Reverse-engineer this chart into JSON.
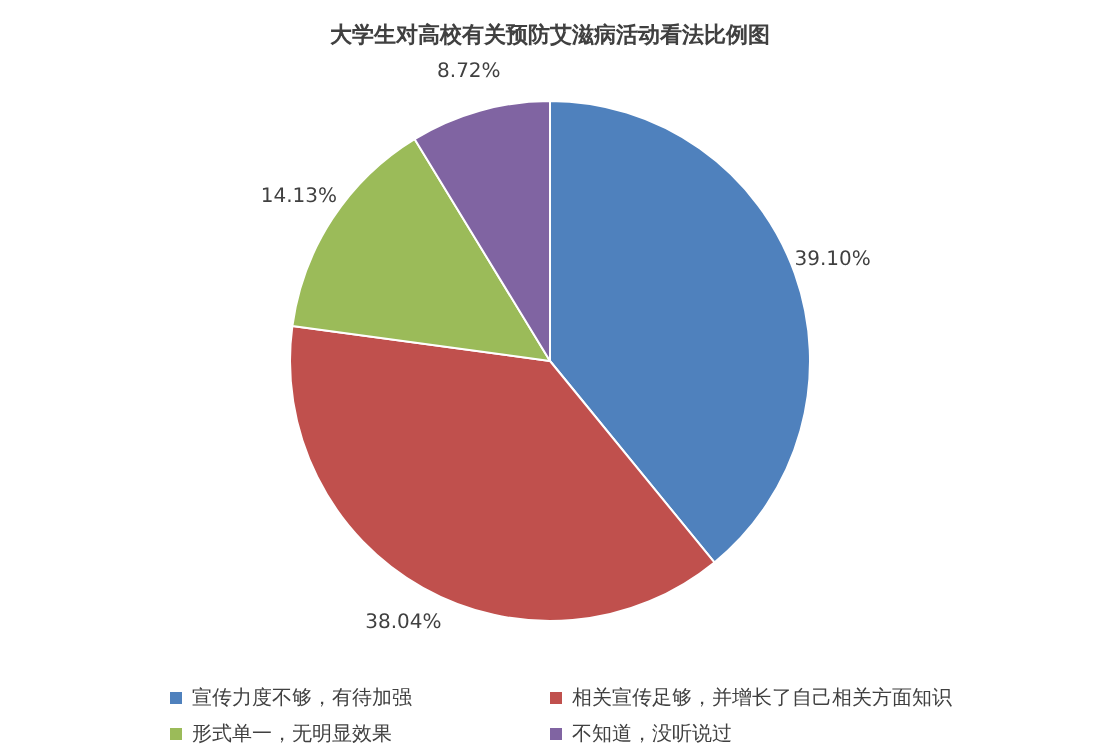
{
  "chart_data": {
    "type": "pie",
    "title": "大学生对高校有关预防艾滋病活动看法比例图",
    "categories": [
      "宣传力度不够，有待加强",
      "相关宣传足够，并增长了自己相关方面知识",
      "形式单一，无明显效果",
      "不知道，没听说过"
    ],
    "values": [
      39.1,
      38.04,
      14.13,
      8.72
    ],
    "value_labels": [
      "39.10%",
      "38.04%",
      "14.13%",
      "8.72%"
    ],
    "colors": [
      "#4f81bd",
      "#c0504d",
      "#9bbb59",
      "#8064a2"
    ],
    "legend": "bottom"
  }
}
